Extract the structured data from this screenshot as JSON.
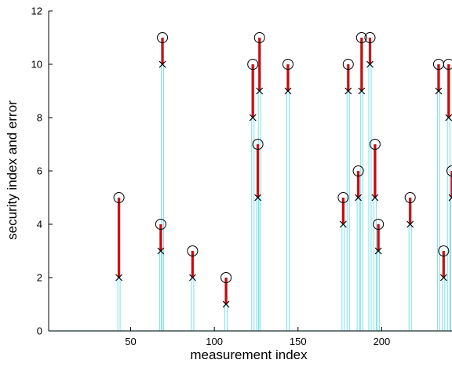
{
  "chart_data": {
    "type": "stem",
    "title": "",
    "xlabel": "measurement index",
    "ylabel": "security index and error",
    "xlim": [
      1,
      242
    ],
    "ylim": [
      0,
      12
    ],
    "xticks": [
      50,
      100,
      150,
      200
    ],
    "yticks": [
      0,
      2,
      4,
      6,
      8,
      10,
      12
    ],
    "grid": false,
    "colors": {
      "stem": "#7fe0ea",
      "error_bar": "#dd0000",
      "marker": "#000000",
      "baseline": "#7fe0ea"
    },
    "series": [
      {
        "marker": "x",
        "x": [
          43,
          68,
          69,
          87,
          107,
          123,
          126,
          127,
          144,
          177,
          180,
          186,
          188,
          193,
          196,
          198,
          217,
          234,
          237,
          240,
          242
        ],
        "values": [
          2,
          3,
          10,
          2,
          1,
          8,
          5,
          9,
          9,
          4,
          9,
          5,
          9,
          10,
          5,
          3,
          4,
          9,
          2,
          8,
          5
        ]
      },
      {
        "marker": "o",
        "x": [
          43,
          68,
          69,
          87,
          107,
          123,
          126,
          127,
          144,
          177,
          180,
          186,
          188,
          193,
          196,
          198,
          217,
          234,
          237,
          240,
          242
        ],
        "values": [
          5,
          4,
          11,
          3,
          2,
          10,
          7,
          11,
          10,
          5,
          10,
          6,
          11,
          11,
          7,
          4,
          5,
          10,
          3,
          10,
          6
        ]
      }
    ]
  }
}
